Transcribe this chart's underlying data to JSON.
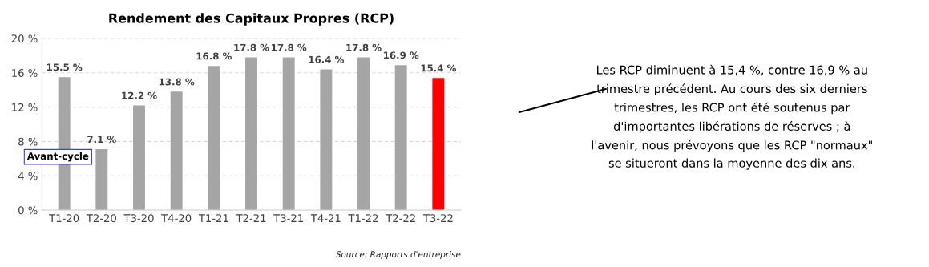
{
  "chart_data": {
    "type": "bar",
    "title": "Rendement des Capitaux Propres (RCP)",
    "categories": [
      "T1-20",
      "T2-20",
      "T3-20",
      "T4-20",
      "T1-21",
      "T2-21",
      "T3-21",
      "T4-21",
      "T1-22",
      "T2-22",
      "T3-22"
    ],
    "values": [
      15.5,
      7.1,
      12.2,
      13.8,
      16.8,
      17.8,
      17.8,
      16.4,
      17.8,
      16.9,
      15.4
    ],
    "colors": [
      "#a5a5a5",
      "#a5a5a5",
      "#a5a5a5",
      "#a5a5a5",
      "#a5a5a5",
      "#a5a5a5",
      "#a5a5a5",
      "#a5a5a5",
      "#a5a5a5",
      "#a5a5a5",
      "#ff0000"
    ],
    "value_labels": [
      "15.5 %",
      "7.1 %",
      "12.2 %",
      "13.8 %",
      "16.8 %",
      "17.8 %",
      "17.8 %",
      "16.4 %",
      "17.8 %",
      "16.9 %",
      "15.4 %"
    ],
    "ylim": [
      0,
      20
    ],
    "yticks": [
      {
        "value": 0,
        "label": "0 %"
      },
      {
        "value": 4,
        "label": "4 %"
      },
      {
        "value": 8,
        "label": "8 %"
      },
      {
        "value": 12,
        "label": "12 %"
      },
      {
        "value": 16,
        "label": "16 %"
      },
      {
        "value": 20,
        "label": "20 %"
      }
    ],
    "grid": "y",
    "legend": false,
    "annotations": [
      "Avant-cycle",
      "Source: Rapports d'entreprise",
      "Les RCP diminuent à 15,4 %, contre 16,9 % au\ntrimestre précédent. Au cours des six derniers\ntrimestres, les RCP ont été soutenus par\nd'importantes libérations de réserves ; à\nl'avenir, nous prévoyons que les RCP \"normaux\"\nse situeront dans la moyenne des dix ans."
    ]
  }
}
